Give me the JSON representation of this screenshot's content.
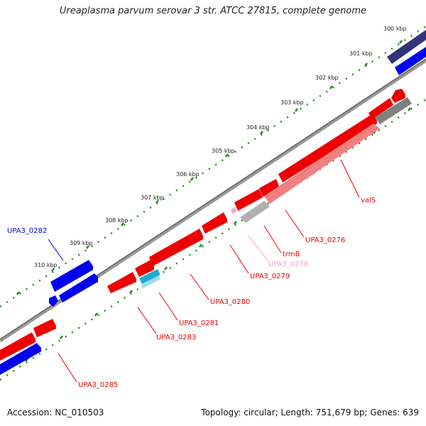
{
  "title": "Ureaplasma parvum serovar 3 str. ATCC 27815, complete genome",
  "footer": {
    "accession": "Accession: NC_010503",
    "summary": "Topology: circular; Length: 751,679 bp; Genes: 639"
  },
  "tick_labels": [
    "300 kbp",
    "301 kbp",
    "302 kbp",
    "303 kbp",
    "304 kbp",
    "305 kbp",
    "306 kbp",
    "307 kbp",
    "308 kbp",
    "309 kbp",
    "310 kbp"
  ],
  "gene_labels": [
    {
      "id": "UPA3_0282",
      "text": "UPA3_0282"
    },
    {
      "id": "valS",
      "text": "valS"
    },
    {
      "id": "UPA3_0276",
      "text": "UPA3_0276"
    },
    {
      "id": "trmB",
      "text": "trmB"
    },
    {
      "id": "UPA3_0278",
      "text": "UPA3_0278"
    },
    {
      "id": "UPA3_0279",
      "text": "UPA3_0279"
    },
    {
      "id": "UPA3_0280",
      "text": "UPA3_0280"
    },
    {
      "id": "UPA3_0281",
      "text": "UPA3_0281"
    },
    {
      "id": "UPA3_0283",
      "text": "UPA3_0283"
    },
    {
      "id": "UPA3_0285",
      "text": "UPA3_0285"
    }
  ],
  "colors": {
    "forward_gene": "#0000ee",
    "forward_gene_dark": "#33337a",
    "reverse_gene": "#ee0000",
    "trna_gene": "#22aacc",
    "pink_gene": "#ff99cc",
    "faded_gene": "#f08080",
    "grey_feature": "#b0b0b0",
    "backbone": "#808080",
    "tick": "#228b22"
  }
}
